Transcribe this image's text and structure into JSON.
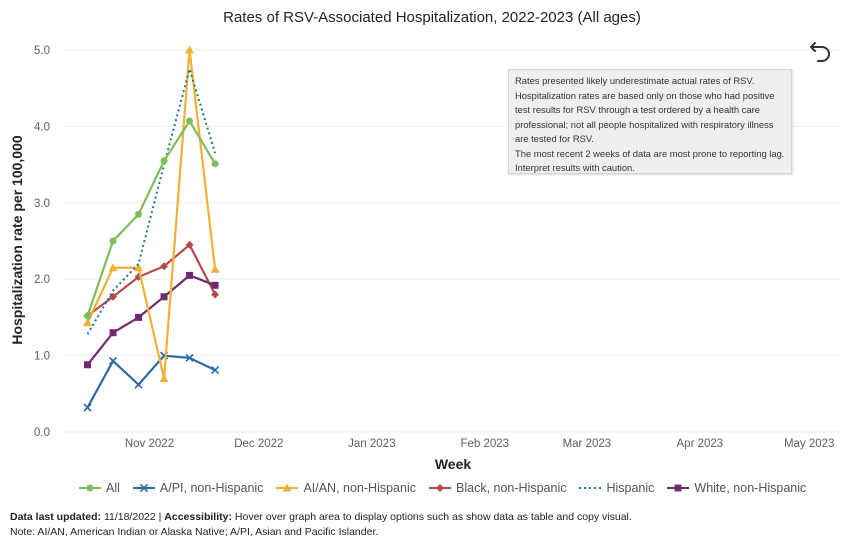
{
  "title": "Rates of RSV-Associated Hospitalization, 2022-2023 (All ages)",
  "note_box": {
    "lines": [
      "Rates presented likely underestimate actual rates of RSV.",
      "Hospitalization rates are based only on those who had positive test results for RSV through a test ordered by a health care professional; not all people hospitalized with respiratory illness are tested for RSV.",
      "The most recent 2 weeks of data are most prone to reporting lag. Interpret results with caution."
    ]
  },
  "footer": {
    "data_updated_label": "Data last updated:",
    "data_updated_value": "11/18/2022 |",
    "accessibility_label": "Accessibility:",
    "accessibility_text": "Hover over graph area to display options such as show data as table and copy visual.",
    "note": "Note: AI/AN, American Indian or Alaska Native; A/PI, Asian and Pacific Islander."
  },
  "icons": {
    "back": "back-arrow-icon"
  },
  "chart_data": {
    "type": "line",
    "xlabel": "Week",
    "ylabel": "Hospitalization rate per 100,000",
    "ylim": [
      0,
      5.0
    ],
    "yticks": [
      "0.0",
      "1.0",
      "2.0",
      "3.0",
      "4.0",
      "5.0"
    ],
    "xticks": [
      "Nov 2022",
      "Dec 2022",
      "Jan 2023",
      "Feb 2023",
      "Mar 2023",
      "Apr 2023",
      "May 2023"
    ],
    "x": [
      "2022-10-15",
      "2022-10-22",
      "2022-10-29",
      "2022-11-05",
      "2022-11-12",
      "2022-11-19"
    ],
    "grid": true,
    "legend_position": "bottom",
    "series": [
      {
        "name": "All",
        "color": "#7dbd5a",
        "marker": "circle",
        "dash": false,
        "values": [
          1.52,
          2.5,
          2.85,
          3.55,
          4.07,
          3.51
        ]
      },
      {
        "name": "A/PI, non-Hispanic",
        "color": "#2a6aa5",
        "marker": "x",
        "dash": false,
        "values": [
          0.32,
          0.93,
          0.62,
          1.0,
          0.97,
          0.81
        ]
      },
      {
        "name": "AI/AN, non-Hispanic",
        "color": "#f2b134",
        "marker": "triangle",
        "dash": false,
        "values": [
          1.43,
          2.15,
          2.15,
          0.7,
          5.0,
          2.13
        ]
      },
      {
        "name": "Black, non-Hispanic",
        "color": "#b5494a",
        "marker": "diamond",
        "dash": false,
        "values": [
          1.52,
          1.77,
          2.03,
          2.17,
          2.45,
          1.8
        ]
      },
      {
        "name": "Hispanic",
        "color": "#1f7a80",
        "marker": "none",
        "dash": true,
        "values": [
          1.28,
          1.85,
          2.2,
          3.5,
          4.75,
          3.65
        ]
      },
      {
        "name": "White, non-Hispanic",
        "color": "#702a6e",
        "marker": "square",
        "dash": false,
        "values": [
          0.88,
          1.3,
          1.5,
          1.77,
          2.05,
          1.92
        ]
      }
    ]
  }
}
